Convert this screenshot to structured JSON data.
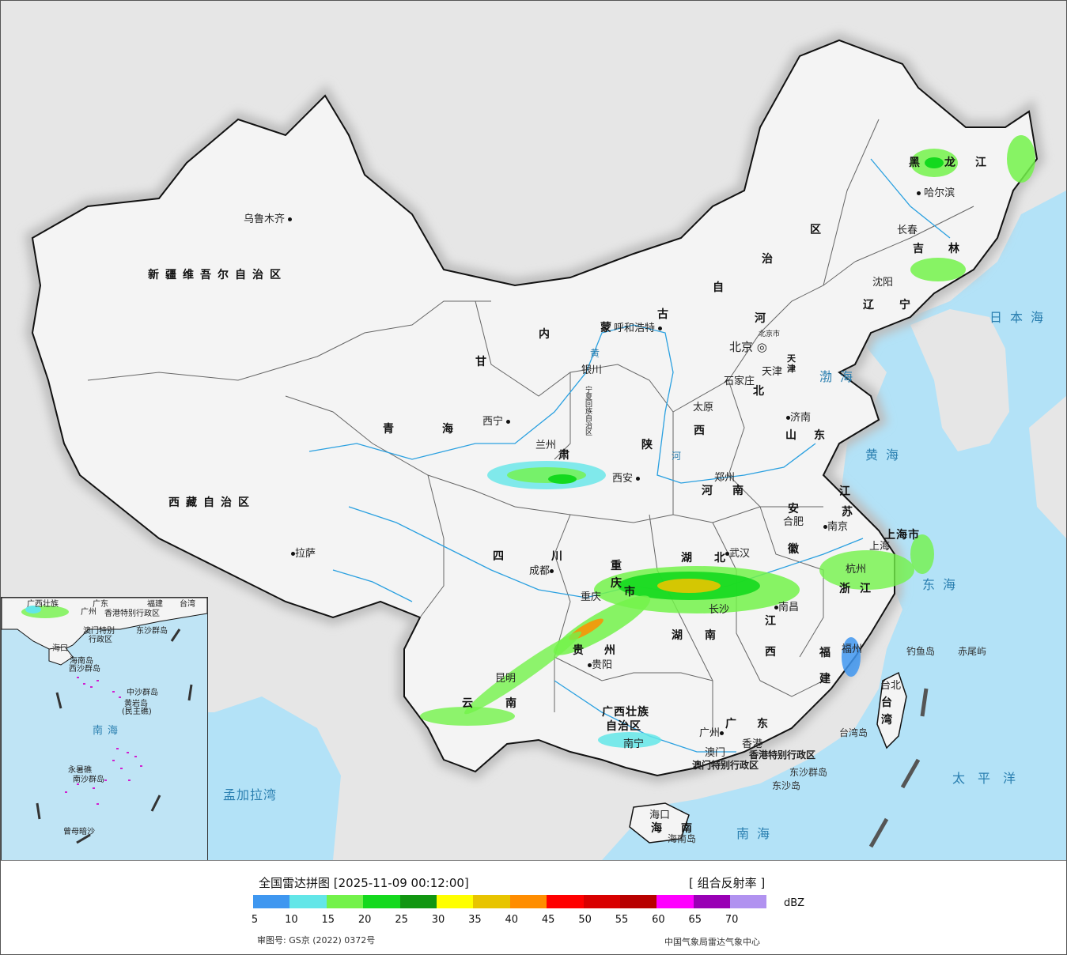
{
  "map": {
    "provinces": [
      "新疆维吾尔自治区",
      "西藏自治区",
      "青",
      "海",
      "甘",
      "肃",
      "内",
      "蒙",
      "古",
      "自",
      "治",
      "区",
      "黑",
      "龙",
      "江",
      "吉",
      "林",
      "辽",
      "宁",
      "河",
      "北",
      "山",
      "东",
      "西",
      "陕",
      "河",
      "南",
      "四",
      "川",
      "湖",
      "北",
      "湖",
      "南",
      "江",
      "西",
      "安",
      "徽",
      "江",
      "苏",
      "浙",
      "江",
      "福",
      "建",
      "广",
      "东",
      "贵",
      "州",
      "云",
      "南",
      "广西壮族",
      "自治区",
      "海",
      "南",
      "上海市",
      "重",
      "庆",
      "市",
      "天",
      "津",
      "台",
      "湾",
      "宁夏回族自治区"
    ],
    "cities": [
      "乌鲁木齐",
      "哈尔滨",
      "长春",
      "沈阳",
      "呼和浩特",
      "北京",
      "北京市",
      "天津",
      "石家庄",
      "太原",
      "济南",
      "银川",
      "西宁",
      "兰州",
      "西安",
      "郑州",
      "合肥",
      "南京",
      "上海",
      "杭州",
      "武汉",
      "成都",
      "重庆",
      "长沙",
      "南昌",
      "福州",
      "台北",
      "贵阳",
      "昆明",
      "南宁",
      "广州",
      "香港",
      "澳门",
      "海口",
      "拉萨"
    ],
    "seas": [
      "日本海",
      "渤海",
      "黄海",
      "东海",
      "南海",
      "太平洋",
      "孟加拉湾"
    ],
    "islands": [
      "钓鱼岛",
      "赤尾屿",
      "台湾岛",
      "东沙群岛",
      "东沙岛",
      "海南岛"
    ],
    "sars": [
      "香港特别行政区",
      "澳门特别行政区"
    ],
    "river_labels": [
      "黄",
      "河"
    ]
  },
  "inset": {
    "labels": [
      "广西壮族",
      "广州",
      "广东",
      "福建",
      "台湾",
      "香港特别行政区",
      "澳门特别",
      "行政区",
      "东沙群岛",
      "海口",
      "海南岛",
      "西沙群岛",
      "中沙群岛",
      "黄岩岛",
      "(民主礁)",
      "南沙群岛",
      "永暑礁",
      "曾母暗沙"
    ],
    "sea": "南海"
  },
  "legend": {
    "title": "全国雷达拼图 [2025-11-09 00:12:00]",
    "product": "[ 组合反射率 ]",
    "unit": "dBZ",
    "colors": [
      "#3f97f0",
      "#63e6e8",
      "#73f24a",
      "#14d91e",
      "#119611",
      "#ffff00",
      "#e8c400",
      "#ff8d00",
      "#ff0000",
      "#d90000",
      "#b80000",
      "#ff00ff",
      "#9900b5",
      "#b192f0"
    ],
    "ticks": [
      "5",
      "10",
      "15",
      "20",
      "25",
      "30",
      "35",
      "40",
      "45",
      "50",
      "55",
      "60",
      "65",
      "70"
    ],
    "approval_no": "审图号: GS京 (2022) 0372号",
    "agency": "中国气象局雷达气象中心"
  }
}
